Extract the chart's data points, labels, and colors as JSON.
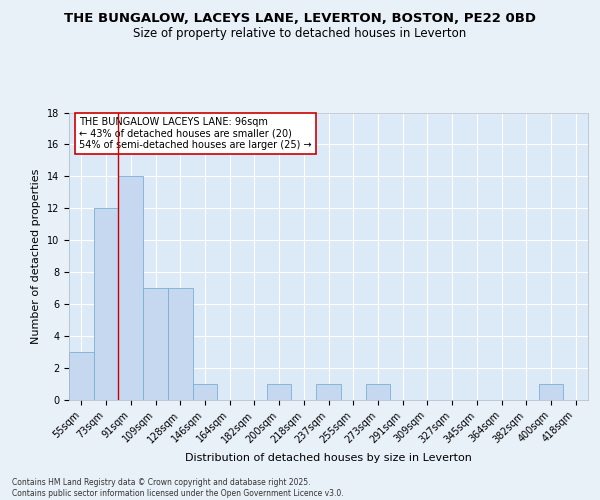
{
  "title1": "THE BUNGALOW, LACEYS LANE, LEVERTON, BOSTON, PE22 0BD",
  "title2": "Size of property relative to detached houses in Leverton",
  "xlabel": "Distribution of detached houses by size in Leverton",
  "ylabel": "Number of detached properties",
  "bin_labels": [
    "55sqm",
    "73sqm",
    "91sqm",
    "109sqm",
    "128sqm",
    "146sqm",
    "164sqm",
    "182sqm",
    "200sqm",
    "218sqm",
    "237sqm",
    "255sqm",
    "273sqm",
    "291sqm",
    "309sqm",
    "327sqm",
    "345sqm",
    "364sqm",
    "382sqm",
    "400sqm",
    "418sqm"
  ],
  "bar_values": [
    3,
    12,
    14,
    7,
    7,
    1,
    0,
    0,
    1,
    0,
    1,
    0,
    1,
    0,
    0,
    0,
    0,
    0,
    0,
    1,
    0
  ],
  "bar_color": "#c5d8f0",
  "bar_edge_color": "#7bafd4",
  "vline_color": "#cc0000",
  "annotation_text": "THE BUNGALOW LACEYS LANE: 96sqm\n← 43% of detached houses are smaller (20)\n54% of semi-detached houses are larger (25) →",
  "annotation_box_edgecolor": "#cc0000",
  "annotation_box_facecolor": "#ffffff",
  "ylim": [
    0,
    18
  ],
  "yticks": [
    0,
    2,
    4,
    6,
    8,
    10,
    12,
    14,
    16,
    18
  ],
  "footer_text": "Contains HM Land Registry data © Crown copyright and database right 2025.\nContains public sector information licensed under the Open Government Licence v3.0.",
  "bg_color": "#e8f0f8",
  "plot_bg_color": "#dce9f7",
  "grid_color": "#ffffff",
  "title_fontsize": 9.5,
  "subtitle_fontsize": 8.5,
  "tick_fontsize": 7,
  "ylabel_fontsize": 8,
  "xlabel_fontsize": 8,
  "footer_fontsize": 5.5
}
